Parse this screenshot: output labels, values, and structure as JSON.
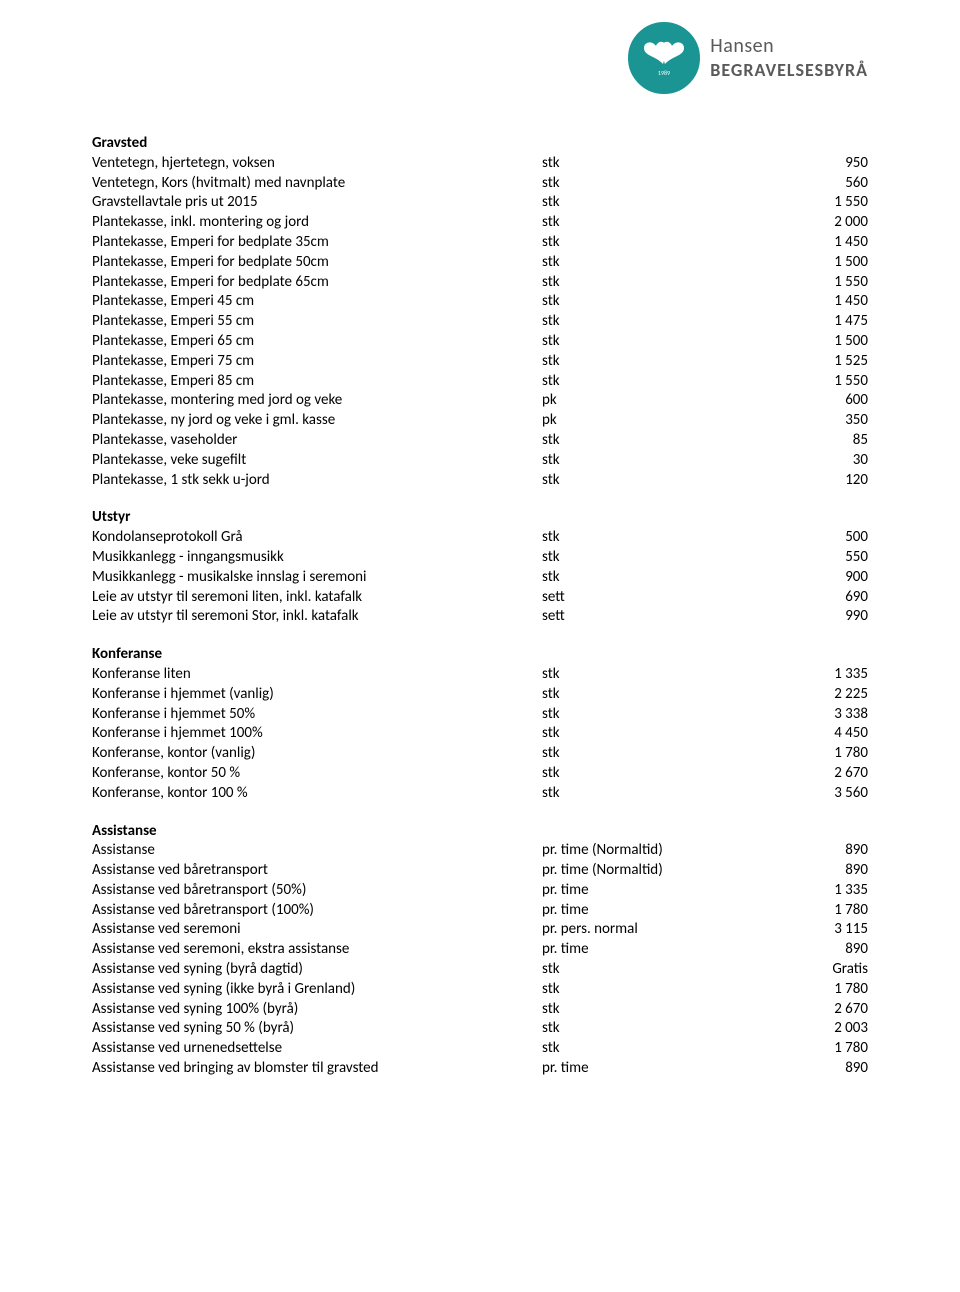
{
  "logo": {
    "brand_top": "Hansen",
    "brand_bottom": "BEGRAVELSESBYRÅ",
    "year": "1989",
    "color": "#1a9594"
  },
  "sections": [
    {
      "title": "Gravsted",
      "rows": [
        {
          "desc": "Ventetegn, hjertetegn, voksen",
          "unit": "stk",
          "price": "950"
        },
        {
          "desc": "Ventetegn, Kors (hvitmalt) med navnplate",
          "unit": "stk",
          "price": "560"
        },
        {
          "desc": "Gravstellavtale pris ut 2015",
          "unit": "stk",
          "price": "1 550"
        },
        {
          "desc": "Plantekasse, inkl. montering og jord",
          "unit": "stk",
          "price": "2 000"
        },
        {
          "desc": "Plantekasse, Emperi for bedplate 35cm",
          "unit": "stk",
          "price": "1 450"
        },
        {
          "desc": "Plantekasse, Emperi for bedplate 50cm",
          "unit": "stk",
          "price": "1 500"
        },
        {
          "desc": "Plantekasse, Emperi for bedplate 65cm",
          "unit": "stk",
          "price": "1 550"
        },
        {
          "desc": "Plantekasse, Emperi 45 cm",
          "unit": "stk",
          "price": "1 450"
        },
        {
          "desc": "Plantekasse, Emperi 55 cm",
          "unit": "stk",
          "price": "1 475"
        },
        {
          "desc": "Plantekasse, Emperi 65 cm",
          "unit": "stk",
          "price": "1 500"
        },
        {
          "desc": "Plantekasse, Emperi 75 cm",
          "unit": "stk",
          "price": "1 525"
        },
        {
          "desc": "Plantekasse, Emperi 85 cm",
          "unit": "stk",
          "price": "1 550"
        },
        {
          "desc": "Plantekasse, montering med jord og veke",
          "unit": "pk",
          "price": "600"
        },
        {
          "desc": "Plantekasse, ny jord og veke i gml. kasse",
          "unit": "pk",
          "price": "350"
        },
        {
          "desc": "Plantekasse, vaseholder",
          "unit": "stk",
          "price": "85"
        },
        {
          "desc": "Plantekasse, veke sugefilt",
          "unit": "stk",
          "price": "30"
        },
        {
          "desc": "Plantekasse, 1 stk sekk u-jord",
          "unit": "stk",
          "price": "120"
        }
      ]
    },
    {
      "title": "Utstyr",
      "rows": [
        {
          "desc": "Kondolanseprotokoll Grå",
          "unit": "stk",
          "price": "500"
        },
        {
          "desc": "Musikkanlegg - inngangsmusikk",
          "unit": "stk",
          "price": "550"
        },
        {
          "desc": "Musikkanlegg - musikalske innslag i seremoni",
          "unit": "stk",
          "price": "900"
        },
        {
          "desc": "Leie av utstyr til seremoni liten, inkl. katafalk",
          "unit": "sett",
          "price": "690"
        },
        {
          "desc": "Leie av utstyr til seremoni Stor, inkl. katafalk",
          "unit": "sett",
          "price": "990"
        }
      ]
    },
    {
      "title": "Konferanse",
      "rows": [
        {
          "desc": "Konferanse liten",
          "unit": "stk",
          "price": "1 335"
        },
        {
          "desc": "Konferanse i hjemmet (vanlig)",
          "unit": "stk",
          "price": "2 225"
        },
        {
          "desc": "Konferanse i hjemmet 50%",
          "unit": "stk",
          "price": "3 338"
        },
        {
          "desc": "Konferanse i hjemmet 100%",
          "unit": "stk",
          "price": "4 450"
        },
        {
          "desc": "Konferanse, kontor (vanlig)",
          "unit": "stk",
          "price": "1 780"
        },
        {
          "desc": "Konferanse, kontor 50 %",
          "unit": "stk",
          "price": "2 670"
        },
        {
          "desc": "Konferanse, kontor 100 %",
          "unit": "stk",
          "price": "3 560"
        }
      ]
    },
    {
      "title": "Assistanse",
      "rows": [
        {
          "desc": "Assistanse",
          "unit": "pr. time (Normaltid)",
          "price": "890"
        },
        {
          "desc": "Assistanse ved båretransport",
          "unit": "pr. time (Normaltid)",
          "price": "890"
        },
        {
          "desc": "Assistanse ved båretransport (50%)",
          "unit": "pr. time",
          "price": "1 335"
        },
        {
          "desc": "Assistanse ved båretransport (100%)",
          "unit": "pr. time",
          "price": "1 780"
        },
        {
          "desc": "Assistanse ved seremoni",
          "unit": "pr. pers. normal",
          "price": "3 115"
        },
        {
          "desc": "Assistanse ved seremoni, ekstra assistanse",
          "unit": "pr. time",
          "price": "890"
        },
        {
          "desc": "Assistanse ved syning (byrå dagtid)",
          "unit": "stk",
          "price": "Gratis"
        },
        {
          "desc": "Assistanse ved syning (ikke byrå i Grenland)",
          "unit": "stk",
          "price": "1 780"
        },
        {
          "desc": "Assistanse ved syning 100% (byrå)",
          "unit": "stk",
          "price": "2 670"
        },
        {
          "desc": "Assistanse ved syning 50 % (byrå)",
          "unit": "stk",
          "price": "2 003"
        },
        {
          "desc": "Assistanse ved urnenedsettelse",
          "unit": "stk",
          "price": "1 780"
        },
        {
          "desc": "Assistanse ved bringing av blomster til gravsted",
          "unit": "pr. time",
          "price": "890"
        }
      ]
    }
  ]
}
